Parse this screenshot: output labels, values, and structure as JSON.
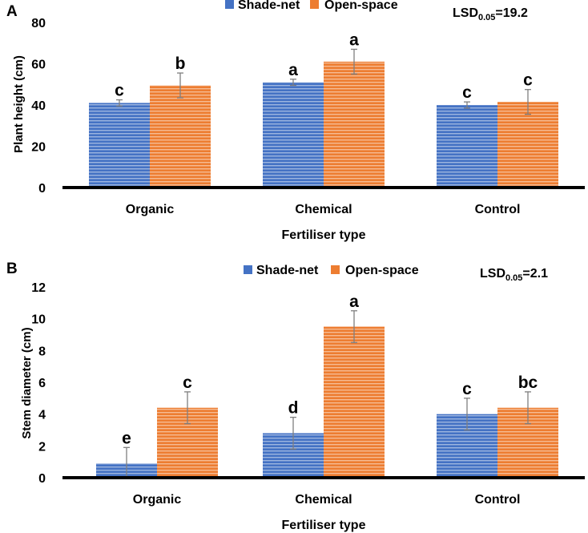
{
  "colors": {
    "shade_net": "#4472c4",
    "open_space": "#ed7d31",
    "axis": "#000000",
    "error": "#7f7f7f"
  },
  "chart_data": [
    {
      "panel_label": "A",
      "type": "bar",
      "title": "",
      "xlabel": "Fertiliser type",
      "ylabel": "Plant height (cm)",
      "categories": [
        "Organic",
        "Chemical",
        "Control"
      ],
      "series": [
        {
          "name": "Shade-net",
          "values": [
            41,
            51,
            40
          ],
          "errors": [
            1.5,
            1.5,
            1.5
          ],
          "letters": [
            "c",
            "a",
            "c"
          ]
        },
        {
          "name": "Open-space",
          "values": [
            49.5,
            61,
            41.5
          ],
          "errors": [
            6,
            6,
            6
          ],
          "letters": [
            "b",
            "a",
            "c"
          ]
        }
      ],
      "ylim": [
        0,
        80
      ],
      "yticks": [
        0,
        20,
        40,
        60,
        80
      ],
      "ytick_labels": [
        "0",
        "20",
        "40",
        "60",
        "80"
      ],
      "legend": "top-center",
      "grid": false,
      "annotation": {
        "main": "LSD",
        "sub": "0.05",
        "rest": "=19.2"
      }
    },
    {
      "panel_label": "B",
      "type": "bar",
      "title": "",
      "xlabel": "Fertiliser type",
      "ylabel": "Stem diameter (cm)",
      "categories": [
        "Organic",
        "Chemical",
        "Control"
      ],
      "series": [
        {
          "name": "Shade-net",
          "values": [
            0.9,
            2.8,
            4.0
          ],
          "errors": [
            1,
            1,
            1
          ],
          "letters": [
            "e",
            "d",
            "c"
          ]
        },
        {
          "name": "Open-space",
          "values": [
            4.4,
            9.5,
            4.4
          ],
          "errors": [
            1,
            1,
            1
          ],
          "letters": [
            "c",
            "a",
            "bc"
          ]
        }
      ],
      "ylim": [
        0,
        12
      ],
      "yticks": [
        0,
        2,
        4,
        6,
        8,
        10,
        12
      ],
      "ytick_labels": [
        "0",
        "2",
        "4",
        "6",
        "8",
        "10",
        "12"
      ],
      "legend": "top-center",
      "grid": false,
      "annotation": {
        "main": "LSD",
        "sub": "0.05",
        "rest": "=2.1"
      }
    }
  ]
}
